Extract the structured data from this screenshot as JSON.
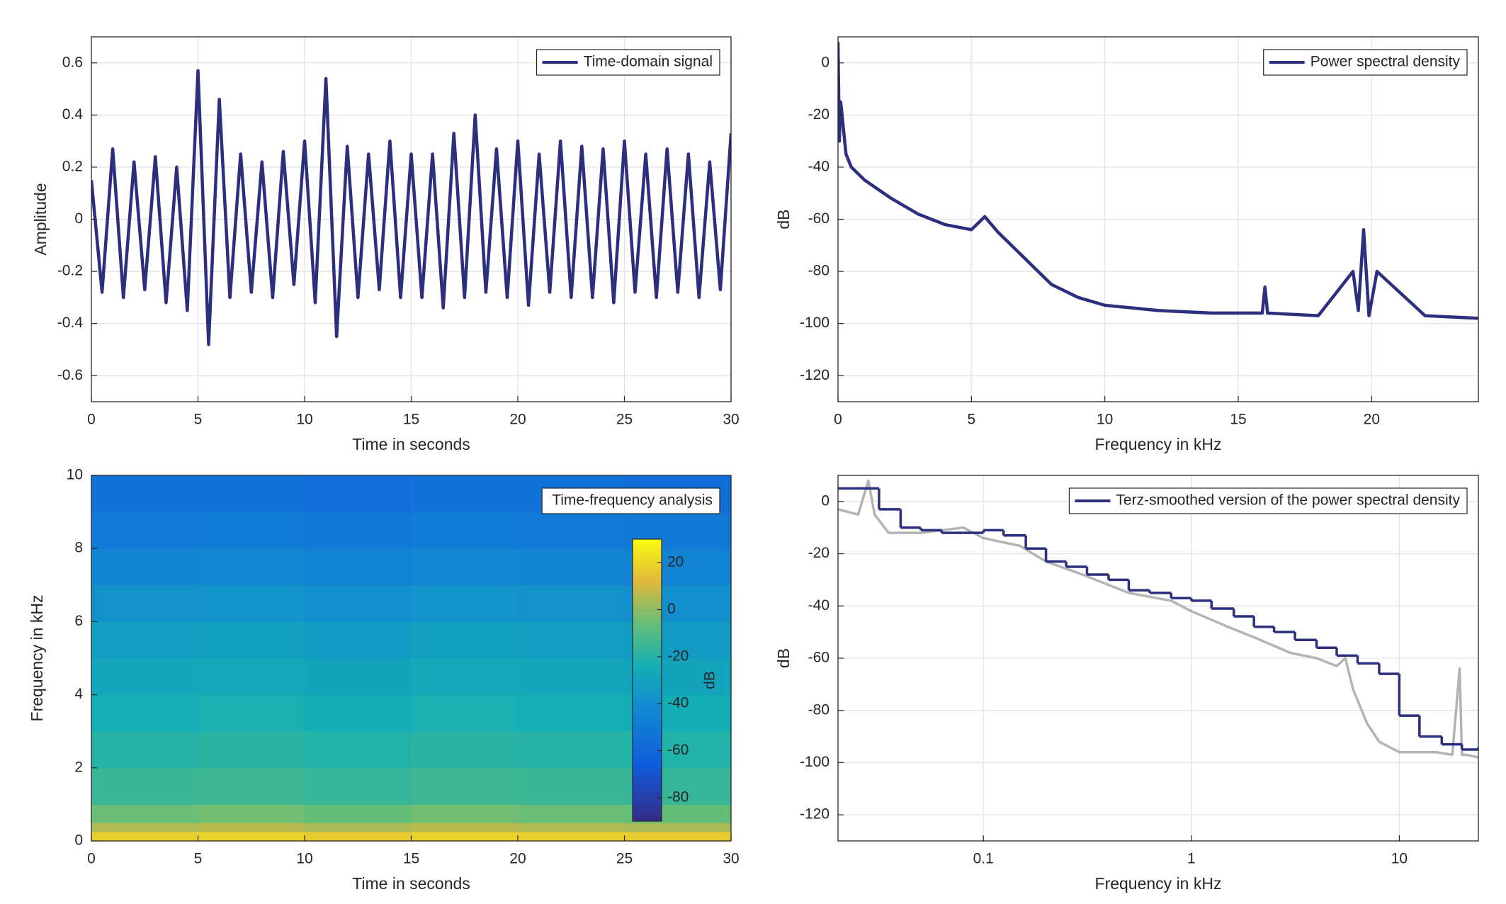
{
  "chart_data": [
    {
      "type": "line",
      "xlabel": "Time in seconds",
      "ylabel": "Amplitude",
      "xlim": [
        0,
        30
      ],
      "xticks": [
        0,
        5,
        10,
        15,
        20,
        25,
        30
      ],
      "ylim": [
        -0.7,
        0.7
      ],
      "yticks": [
        -0.6,
        -0.4,
        -0.2,
        0,
        0.2,
        0.4,
        0.6
      ],
      "grid": true,
      "legend": "northeast",
      "series": [
        {
          "name": "Time-domain signal",
          "color": "#2b2f7e",
          "x": [
            0,
            0.5,
            1,
            1.5,
            2,
            2.5,
            3,
            3.5,
            4,
            4.5,
            5,
            5.5,
            6,
            6.5,
            7,
            7.5,
            8,
            8.5,
            9,
            9.5,
            10,
            10.5,
            11,
            11.5,
            12,
            12.5,
            13,
            13.5,
            14,
            14.5,
            15,
            15.5,
            16,
            16.5,
            17,
            17.5,
            18,
            18.5,
            19,
            19.5,
            20,
            20.5,
            21,
            21.5,
            22,
            22.5,
            23,
            23.5,
            24,
            24.5,
            25,
            25.5,
            26,
            26.5,
            27,
            27.5,
            28,
            28.5,
            29,
            29.5,
            30
          ],
          "values": [
            0.15,
            -0.28,
            0.27,
            -0.3,
            0.22,
            -0.27,
            0.24,
            -0.32,
            0.2,
            -0.35,
            0.57,
            -0.48,
            0.46,
            -0.3,
            0.25,
            -0.28,
            0.22,
            -0.3,
            0.26,
            -0.25,
            0.3,
            -0.32,
            0.54,
            -0.45,
            0.28,
            -0.3,
            0.25,
            -0.27,
            0.3,
            -0.3,
            0.25,
            -0.3,
            0.25,
            -0.34,
            0.33,
            -0.3,
            0.4,
            -0.28,
            0.27,
            -0.3,
            0.3,
            -0.33,
            0.25,
            -0.28,
            0.3,
            -0.3,
            0.28,
            -0.3,
            0.27,
            -0.32,
            0.3,
            -0.28,
            0.25,
            -0.3,
            0.27,
            -0.28,
            0.25,
            -0.3,
            0.22,
            -0.27,
            0.33
          ]
        }
      ]
    },
    {
      "type": "line",
      "xlabel": "Frequency in kHz",
      "ylabel": "dB",
      "xlim": [
        0,
        24
      ],
      "xticks": [
        0,
        5,
        10,
        15,
        20
      ],
      "ylim": [
        -130,
        10
      ],
      "yticks": [
        -120,
        -100,
        -80,
        -60,
        -40,
        -20,
        0
      ],
      "grid": true,
      "legend": "northeast",
      "series": [
        {
          "name": "Power spectral density",
          "color": "#2b2f7e",
          "x": [
            0,
            0.05,
            0.1,
            0.3,
            0.5,
            1,
            2,
            3,
            4,
            5,
            5.5,
            6,
            7,
            8,
            9,
            10,
            12,
            14,
            15.9,
            16,
            16.1,
            18,
            19.3,
            19.5,
            19.7,
            19.9,
            20.2,
            22,
            24
          ],
          "values": [
            8,
            -30,
            -15,
            -35,
            -40,
            -45,
            -52,
            -58,
            -62,
            -64,
            -59,
            -65,
            -75,
            -85,
            -90,
            -93,
            -95,
            -96,
            -96,
            -86,
            -96,
            -97,
            -80,
            -95,
            -64,
            -97,
            -80,
            -97,
            -98
          ]
        }
      ]
    },
    {
      "type": "heatmap",
      "xlabel": "Time in seconds",
      "ylabel": "Frequency in kHz",
      "name": "Time-frequency analysis",
      "legend": "northeast",
      "xlim": [
        0,
        30
      ],
      "xticks": [
        0,
        5,
        10,
        15,
        20,
        25,
        30
      ],
      "ylim": [
        0,
        10
      ],
      "yticks": [
        0,
        2,
        4,
        6,
        8,
        10
      ],
      "xbins": [
        0,
        5,
        10,
        15,
        20,
        25,
        30
      ],
      "ybins": [
        0,
        0.25,
        0.5,
        1,
        2,
        3,
        4,
        5,
        6,
        7,
        8,
        9,
        10
      ],
      "z": [
        [
          18,
          19,
          17,
          19,
          18,
          17
        ],
        [
          5,
          6,
          4,
          6,
          5,
          4
        ],
        [
          -5,
          -4,
          -6,
          -4,
          -5,
          -6
        ],
        [
          -15,
          -14,
          -16,
          -14,
          -15,
          -16
        ],
        [
          -20,
          -19,
          -21,
          -19,
          -20,
          -21
        ],
        [
          -24,
          -23,
          -25,
          -23,
          -24,
          -25
        ],
        [
          -28,
          -27,
          -29,
          -27,
          -28,
          -29
        ],
        [
          -32,
          -31,
          -33,
          -31,
          -32,
          -33
        ],
        [
          -38,
          -37,
          -39,
          -37,
          -38,
          -39
        ],
        [
          -44,
          -43,
          -45,
          -43,
          -44,
          -45
        ],
        [
          -50,
          -49,
          -51,
          -49,
          -50,
          -51
        ],
        [
          -55,
          -54,
          -56,
          -54,
          -55,
          -56
        ]
      ],
      "colormap": "parula",
      "clim": [
        -90,
        30
      ],
      "cticks": [
        20,
        0,
        -20,
        -40,
        -60,
        -80
      ],
      "clabel": "dB"
    },
    {
      "type": "line",
      "xlabel": "Frequency in kHz",
      "ylabel": "dB",
      "xscale": "log",
      "xlim": [
        0.02,
        24
      ],
      "xticks": [
        0.1,
        1,
        10
      ],
      "ylim": [
        -130,
        10
      ],
      "yticks": [
        -120,
        -100,
        -80,
        -60,
        -40,
        -20,
        0
      ],
      "grid": true,
      "legend": "northeast",
      "series": [
        {
          "color": "#b4b4b4",
          "x": [
            0.02,
            0.025,
            0.028,
            0.03,
            0.035,
            0.05,
            0.08,
            0.1,
            0.15,
            0.2,
            0.3,
            0.5,
            0.8,
            1,
            1.5,
            2,
            3,
            4,
            5,
            5.5,
            6,
            7,
            8,
            10,
            15,
            18,
            19.5,
            20,
            21,
            24
          ],
          "values": [
            -3,
            -5,
            8,
            -5,
            -12,
            -12,
            -10,
            -14,
            -17,
            -23,
            -28,
            -35,
            -38,
            -42,
            -48,
            -52,
            -58,
            -60,
            -63,
            -60,
            -72,
            -85,
            -92,
            -96,
            -96,
            -97,
            -64,
            -97,
            -97,
            -98
          ]
        },
        {
          "name": "Terz-smoothed version of the power spectral density",
          "color": "#2b2f7e",
          "step": true,
          "x": [
            0.02,
            0.0315,
            0.04,
            0.05,
            0.063,
            0.08,
            0.1,
            0.125,
            0.16,
            0.2,
            0.25,
            0.315,
            0.4,
            0.5,
            0.63,
            0.8,
            1,
            1.25,
            1.6,
            2,
            2.5,
            3.15,
            4,
            5,
            6.3,
            8,
            10,
            12.5,
            16,
            20,
            24
          ],
          "values": [
            5,
            -3,
            -10,
            -11,
            -12,
            -12,
            -11,
            -13,
            -18,
            -23,
            -25,
            -28,
            -30,
            -34,
            -35,
            -37,
            -38,
            -41,
            -44,
            -48,
            -50,
            -53,
            -56,
            -59,
            -62,
            -66,
            -82,
            -90,
            -93,
            -95,
            -94
          ]
        }
      ]
    }
  ]
}
